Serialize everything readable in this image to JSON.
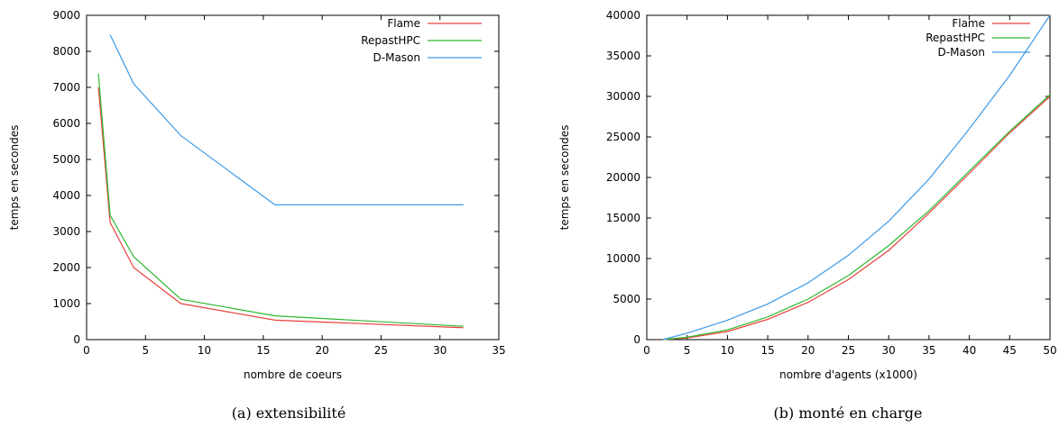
{
  "chart_data": [
    {
      "type": "line",
      "xlabel": "nombre de coeurs",
      "ylabel": "temps en secondes",
      "caption": "(a)  extensibilité",
      "xlim": [
        0,
        35
      ],
      "ylim": [
        0,
        9000
      ],
      "xticks": [
        0,
        5,
        10,
        15,
        20,
        25,
        30,
        35
      ],
      "yticks": [
        0,
        1000,
        2000,
        3000,
        4000,
        5000,
        6000,
        7000,
        8000,
        9000
      ],
      "grid": false,
      "legend_position": "top-right",
      "series": [
        {
          "name": "Flame",
          "color": "#e8413c",
          "points": [
            [
              1,
              7000
            ],
            [
              2,
              3250
            ],
            [
              4,
              2000
            ],
            [
              8,
              1000
            ],
            [
              16,
              540
            ],
            [
              32,
              330
            ]
          ]
        },
        {
          "name": "RepastHPC",
          "color": "#2eb82e",
          "points": [
            [
              1,
              7380
            ],
            [
              2,
              3450
            ],
            [
              4,
              2300
            ],
            [
              8,
              1120
            ],
            [
              16,
              660
            ],
            [
              32,
              370
            ]
          ]
        },
        {
          "name": "D-Mason",
          "color": "#3c9ae8",
          "points": [
            [
              2,
              8460
            ],
            [
              4,
              7100
            ],
            [
              8,
              5660
            ],
            [
              16,
              3740
            ],
            [
              32,
              3740
            ]
          ]
        }
      ]
    },
    {
      "type": "line",
      "xlabel": "nombre d'agents (x1000)",
      "ylabel": "temps en secondes",
      "caption": "(b)  monté en charge",
      "xlim": [
        0,
        50
      ],
      "ylim": [
        0,
        40000
      ],
      "xticks": [
        0,
        5,
        10,
        15,
        20,
        25,
        30,
        35,
        40,
        45,
        50
      ],
      "yticks": [
        0,
        5000,
        10000,
        15000,
        20000,
        25000,
        30000,
        35000,
        40000
      ],
      "grid": false,
      "legend_position": "top-right",
      "series": [
        {
          "name": "Flame",
          "color": "#e8413c",
          "points": [
            [
              2,
              0
            ],
            [
              5,
              200
            ],
            [
              10,
              1000
            ],
            [
              15,
              2500
            ],
            [
              20,
              4600
            ],
            [
              25,
              7400
            ],
            [
              30,
              11000
            ],
            [
              35,
              15600
            ],
            [
              40,
              20500
            ],
            [
              45,
              25500
            ],
            [
              50,
              30000
            ]
          ]
        },
        {
          "name": "RepastHPC",
          "color": "#2eb82e",
          "points": [
            [
              2,
              0
            ],
            [
              5,
              300
            ],
            [
              10,
              1200
            ],
            [
              15,
              2800
            ],
            [
              20,
              5000
            ],
            [
              25,
              7900
            ],
            [
              30,
              11600
            ],
            [
              35,
              15900
            ],
            [
              40,
              20800
            ],
            [
              45,
              25700
            ],
            [
              50,
              30200
            ]
          ]
        },
        {
          "name": "D-Mason",
          "color": "#3c9ae8",
          "points": [
            [
              2,
              0
            ],
            [
              5,
              800
            ],
            [
              10,
              2400
            ],
            [
              15,
              4400
            ],
            [
              20,
              7000
            ],
            [
              25,
              10400
            ],
            [
              30,
              14600
            ],
            [
              35,
              19800
            ],
            [
              40,
              26000
            ],
            [
              45,
              32600
            ],
            [
              50,
              40000
            ]
          ]
        }
      ]
    }
  ]
}
